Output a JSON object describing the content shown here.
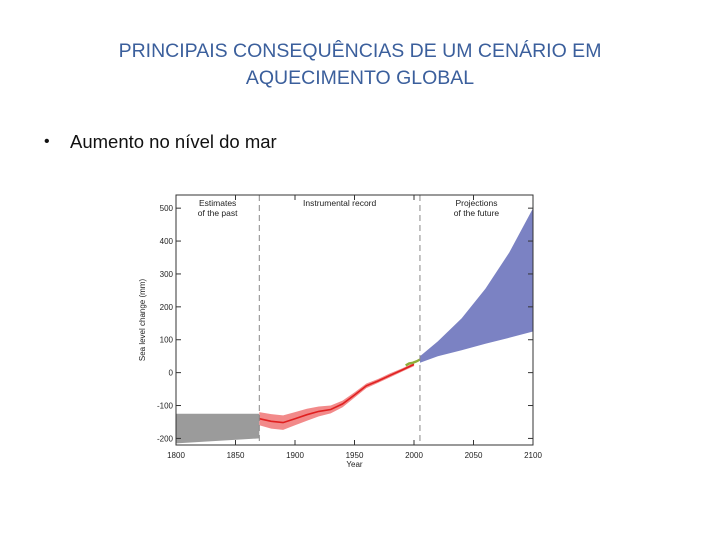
{
  "slide": {
    "title_line1": "PRINCIPAIS CONSEQUÊNCIAS DE UM CENÁRIO EM",
    "title_line2": "AQUECIMENTO GLOBAL",
    "bullet_symbol": "•",
    "bullet_text": "Aumento no nível do mar"
  },
  "chart_data": {
    "type": "line",
    "xlabel": "Year",
    "ylabel": "Sea level change (mm)",
    "xlim": [
      1800,
      2100
    ],
    "ylim": [
      -220,
      540
    ],
    "xticks": [
      1800,
      1850,
      1900,
      1950,
      2000,
      2050,
      2100
    ],
    "yticks": [
      -200,
      -100,
      0,
      100,
      200,
      300,
      400,
      500
    ],
    "grid": false,
    "dividers": [
      1870,
      2005
    ],
    "panels": [
      {
        "line1": "Estimates",
        "line2": "of the past"
      },
      {
        "line1": "Instrumental record",
        "line2": ""
      },
      {
        "line1": "Projections",
        "line2": "of the future"
      }
    ],
    "series": [
      {
        "color": "#9b9b9b",
        "x": [
          1800,
          1870
        ],
        "lower": [
          -215,
          -200
        ],
        "upper": [
          -125,
          -125
        ]
      },
      {
        "color": "#e02020",
        "band_color": "#f28a8a",
        "x": [
          1870,
          1880,
          1890,
          1900,
          1910,
          1920,
          1930,
          1940,
          1950,
          1960,
          1970,
          1980,
          1990,
          2000
        ],
        "values": [
          -140,
          -148,
          -152,
          -140,
          -128,
          -118,
          -112,
          -95,
          -68,
          -40,
          -25,
          -8,
          8,
          25
        ],
        "band_halfwidth": [
          20,
          22,
          22,
          20,
          18,
          15,
          12,
          10,
          8,
          7,
          6,
          6,
          5,
          5
        ]
      },
      {
        "color": "#8fae3a",
        "x": [
          1993,
          1996,
          1999,
          2002,
          2005
        ],
        "values": [
          22,
          28,
          30,
          34,
          40
        ]
      },
      {
        "color": "#7b82c3",
        "x": [
          2005,
          2020,
          2040,
          2060,
          2080,
          2100
        ],
        "lower": [
          30,
          50,
          68,
          88,
          106,
          125
        ],
        "upper": [
          50,
          95,
          165,
          255,
          365,
          500
        ]
      }
    ]
  }
}
